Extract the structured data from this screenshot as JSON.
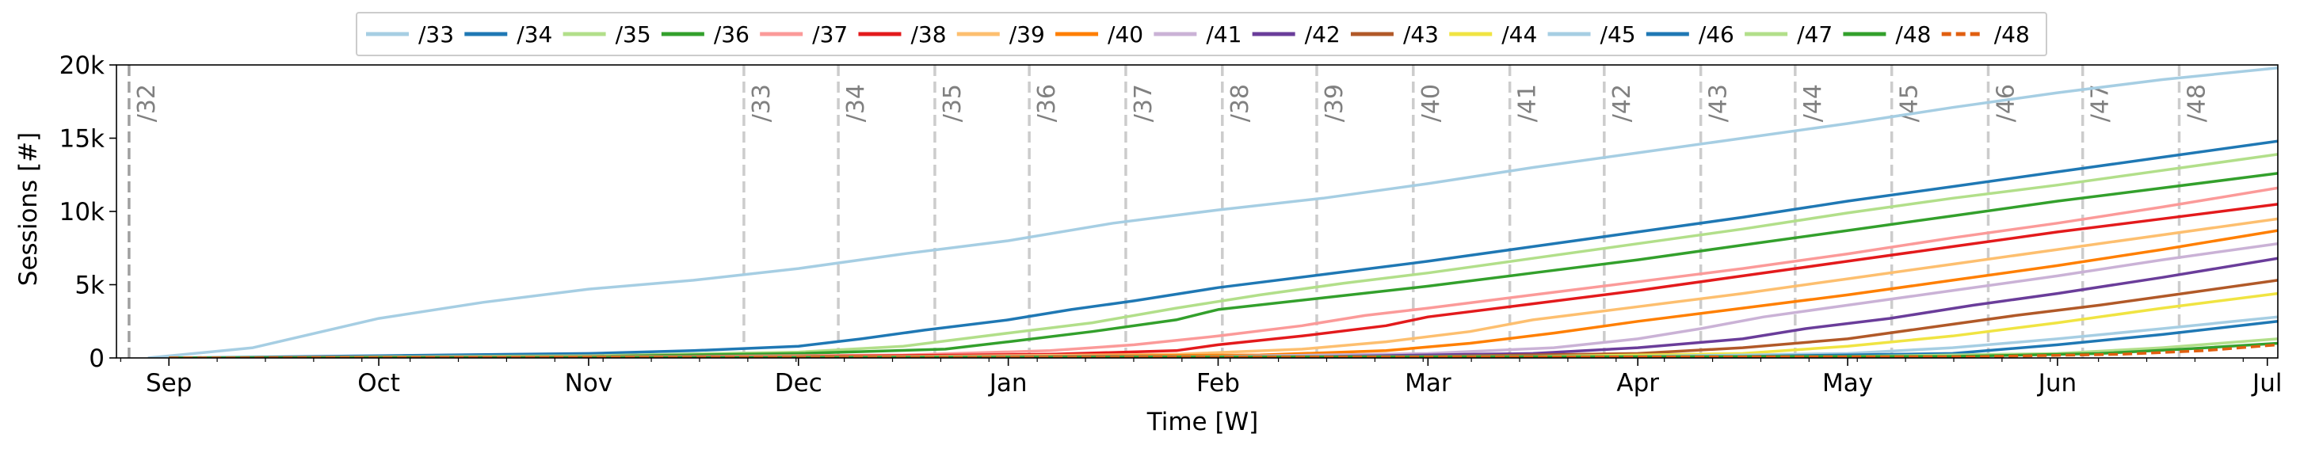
{
  "chart_data": {
    "type": "line",
    "title": "",
    "xlabel": "Time [W]",
    "ylabel": "Sessions [#]",
    "x_ticks": [
      "Sep",
      "Oct",
      "Nov",
      "Dec",
      "Jan",
      "Feb",
      "Mar",
      "Apr",
      "May",
      "Jun",
      "Jul"
    ],
    "y_ticks": [
      "0",
      "5k",
      "10k",
      "15k",
      "20k"
    ],
    "ylim": [
      0,
      20000
    ],
    "xlim_months": [
      -0.25,
      10.05
    ],
    "grid": false,
    "legend_position": "top-center",
    "markers": [
      {
        "label": "/32",
        "t": -0.19
      },
      {
        "label": "/33",
        "t": 2.74
      },
      {
        "label": "/34",
        "t": 3.19
      },
      {
        "label": "/35",
        "t": 3.65
      },
      {
        "label": "/36",
        "t": 4.1
      },
      {
        "label": "/37",
        "t": 4.56
      },
      {
        "label": "/38",
        "t": 5.02
      },
      {
        "label": "/39",
        "t": 5.47
      },
      {
        "label": "/40",
        "t": 5.93
      },
      {
        "label": "/41",
        "t": 6.39
      },
      {
        "label": "/42",
        "t": 6.84
      },
      {
        "label": "/43",
        "t": 7.3
      },
      {
        "label": "/44",
        "t": 7.75
      },
      {
        "label": "/45",
        "t": 8.21
      },
      {
        "label": "/46",
        "t": 8.67
      },
      {
        "label": "/47",
        "t": 9.12
      },
      {
        "label": "/48",
        "t": 9.58
      }
    ],
    "series": [
      {
        "name": "/33",
        "color": "#a6cee3",
        "dash": false,
        "points": [
          [
            -0.1,
            0
          ],
          [
            0.4,
            700
          ],
          [
            1,
            2700
          ],
          [
            1.5,
            3800
          ],
          [
            2,
            4700
          ],
          [
            2.5,
            5300
          ],
          [
            3,
            6100
          ],
          [
            3.5,
            7100
          ],
          [
            4,
            8000
          ],
          [
            4.5,
            9200
          ],
          [
            5,
            10100
          ],
          [
            5.5,
            10900
          ],
          [
            6,
            11900
          ],
          [
            6.5,
            13000
          ],
          [
            7,
            14000
          ],
          [
            7.5,
            15000
          ],
          [
            8,
            16000
          ],
          [
            8.5,
            17100
          ],
          [
            9,
            18100
          ],
          [
            9.5,
            19000
          ],
          [
            10.05,
            19800
          ]
        ]
      },
      {
        "name": "/34",
        "color": "#1f78b4",
        "dash": false,
        "points": [
          [
            0,
            0
          ],
          [
            1,
            150
          ],
          [
            2,
            300
          ],
          [
            2.5,
            500
          ],
          [
            3,
            800
          ],
          [
            3.3,
            1300
          ],
          [
            3.6,
            1900
          ],
          [
            4,
            2600
          ],
          [
            4.3,
            3300
          ],
          [
            4.6,
            3900
          ],
          [
            5,
            4800
          ],
          [
            5.5,
            5700
          ],
          [
            6,
            6600
          ],
          [
            6.5,
            7600
          ],
          [
            7,
            8600
          ],
          [
            7.5,
            9600
          ],
          [
            8,
            10700
          ],
          [
            8.5,
            11700
          ],
          [
            9,
            12700
          ],
          [
            9.5,
            13700
          ],
          [
            10.05,
            14800
          ]
        ]
      },
      {
        "name": "/35",
        "color": "#b2df8a",
        "dash": false,
        "points": [
          [
            0,
            0
          ],
          [
            2,
            150
          ],
          [
            3,
            400
          ],
          [
            3.5,
            800
          ],
          [
            4,
            1700
          ],
          [
            4.4,
            2400
          ],
          [
            4.8,
            3400
          ],
          [
            5.2,
            4300
          ],
          [
            5.6,
            5100
          ],
          [
            6,
            5800
          ],
          [
            6.5,
            6800
          ],
          [
            7,
            7800
          ],
          [
            7.5,
            8800
          ],
          [
            8,
            9900
          ],
          [
            8.5,
            10900
          ],
          [
            9,
            11800
          ],
          [
            9.5,
            12800
          ],
          [
            10.05,
            13900
          ]
        ]
      },
      {
        "name": "/36",
        "color": "#33a02c",
        "dash": false,
        "points": [
          [
            0,
            0
          ],
          [
            2,
            100
          ],
          [
            3,
            300
          ],
          [
            3.7,
            600
          ],
          [
            4,
            1100
          ],
          [
            4.4,
            1800
          ],
          [
            4.8,
            2600
          ],
          [
            5,
            3300
          ],
          [
            5.5,
            4100
          ],
          [
            6,
            4900
          ],
          [
            6.5,
            5800
          ],
          [
            7,
            6700
          ],
          [
            7.5,
            7700
          ],
          [
            8,
            8700
          ],
          [
            8.5,
            9700
          ],
          [
            9,
            10700
          ],
          [
            9.5,
            11600
          ],
          [
            10.05,
            12600
          ]
        ]
      },
      {
        "name": "/37",
        "color": "#fb9a99",
        "dash": false,
        "points": [
          [
            0,
            0
          ],
          [
            2.5,
            100
          ],
          [
            3.5,
            200
          ],
          [
            4.2,
            500
          ],
          [
            4.6,
            900
          ],
          [
            5,
            1500
          ],
          [
            5.4,
            2200
          ],
          [
            5.7,
            2900
          ],
          [
            6,
            3400
          ],
          [
            6.5,
            4300
          ],
          [
            7,
            5200
          ],
          [
            7.5,
            6100
          ],
          [
            8,
            7100
          ],
          [
            8.5,
            8200
          ],
          [
            9,
            9200
          ],
          [
            9.5,
            10300
          ],
          [
            10.05,
            11600
          ]
        ]
      },
      {
        "name": "/38",
        "color": "#e31a1c",
        "dash": false,
        "points": [
          [
            0,
            0
          ],
          [
            3,
            100
          ],
          [
            4.2,
            250
          ],
          [
            4.8,
            500
          ],
          [
            5,
            900
          ],
          [
            5.4,
            1500
          ],
          [
            5.8,
            2200
          ],
          [
            6,
            2800
          ],
          [
            6.5,
            3700
          ],
          [
            7,
            4600
          ],
          [
            7.5,
            5600
          ],
          [
            8,
            6600
          ],
          [
            8.5,
            7600
          ],
          [
            9,
            8600
          ],
          [
            9.5,
            9500
          ],
          [
            10.05,
            10500
          ]
        ]
      },
      {
        "name": "/39",
        "color": "#fdbf6f",
        "dash": false,
        "points": [
          [
            0,
            0
          ],
          [
            3.5,
            100
          ],
          [
            4.8,
            250
          ],
          [
            5.4,
            600
          ],
          [
            5.8,
            1100
          ],
          [
            6.2,
            1800
          ],
          [
            6.5,
            2600
          ],
          [
            7,
            3500
          ],
          [
            7.5,
            4400
          ],
          [
            8,
            5400
          ],
          [
            8.5,
            6400
          ],
          [
            9,
            7400
          ],
          [
            9.5,
            8400
          ],
          [
            10.05,
            9500
          ]
        ]
      },
      {
        "name": "/40",
        "color": "#ff7f00",
        "dash": false,
        "points": [
          [
            0,
            0
          ],
          [
            4,
            100
          ],
          [
            5.2,
            200
          ],
          [
            5.8,
            500
          ],
          [
            6.2,
            1000
          ],
          [
            6.6,
            1700
          ],
          [
            7,
            2500
          ],
          [
            7.5,
            3400
          ],
          [
            8,
            4300
          ],
          [
            8.5,
            5300
          ],
          [
            9,
            6300
          ],
          [
            9.5,
            7400
          ],
          [
            10.05,
            8700
          ]
        ]
      },
      {
        "name": "/41",
        "color": "#cab2d6",
        "dash": false,
        "points": [
          [
            0,
            0
          ],
          [
            5,
            100
          ],
          [
            6,
            300
          ],
          [
            6.6,
            700
          ],
          [
            7,
            1300
          ],
          [
            7.3,
            2000
          ],
          [
            7.6,
            2800
          ],
          [
            8,
            3600
          ],
          [
            8.5,
            4600
          ],
          [
            9,
            5600
          ],
          [
            9.5,
            6700
          ],
          [
            10.05,
            7800
          ]
        ]
      },
      {
        "name": "/42",
        "color": "#6a3d9a",
        "dash": false,
        "points": [
          [
            0,
            0
          ],
          [
            5.5,
            100
          ],
          [
            6.5,
            300
          ],
          [
            7,
            700
          ],
          [
            7.5,
            1300
          ],
          [
            7.8,
            2000
          ],
          [
            8.2,
            2700
          ],
          [
            8.6,
            3600
          ],
          [
            9,
            4400
          ],
          [
            9.5,
            5500
          ],
          [
            10.05,
            6800
          ]
        ]
      },
      {
        "name": "/43",
        "color": "#b15928",
        "dash": false,
        "points": [
          [
            0,
            0
          ],
          [
            6,
            100
          ],
          [
            7,
            300
          ],
          [
            7.5,
            700
          ],
          [
            8,
            1300
          ],
          [
            8.4,
            2100
          ],
          [
            8.8,
            2900
          ],
          [
            9.2,
            3600
          ],
          [
            9.6,
            4400
          ],
          [
            10.05,
            5300
          ]
        ]
      },
      {
        "name": "/44",
        "color": "#f0e442",
        "dash": false,
        "points": [
          [
            0,
            0
          ],
          [
            6.5,
            100
          ],
          [
            7.5,
            300
          ],
          [
            8,
            800
          ],
          [
            8.5,
            1500
          ],
          [
            9,
            2400
          ],
          [
            9.5,
            3400
          ],
          [
            10.05,
            4400
          ]
        ]
      },
      {
        "name": "/45",
        "color": "#a6cee3",
        "dash": false,
        "points": [
          [
            0,
            0
          ],
          [
            7,
            100
          ],
          [
            8,
            300
          ],
          [
            8.5,
            700
          ],
          [
            9,
            1300
          ],
          [
            9.5,
            2000
          ],
          [
            10.05,
            2800
          ]
        ]
      },
      {
        "name": "/46",
        "color": "#1f78b4",
        "dash": false,
        "points": [
          [
            0,
            0
          ],
          [
            7.5,
            100
          ],
          [
            8.5,
            300
          ],
          [
            9,
            900
          ],
          [
            9.5,
            1600
          ],
          [
            10.05,
            2500
          ]
        ]
      },
      {
        "name": "/47",
        "color": "#b2df8a",
        "dash": false,
        "points": [
          [
            0,
            0
          ],
          [
            8,
            100
          ],
          [
            9,
            300
          ],
          [
            9.5,
            700
          ],
          [
            10.05,
            1300
          ]
        ]
      },
      {
        "name": "/48",
        "color": "#33a02c",
        "dash": false,
        "points": [
          [
            0,
            0
          ],
          [
            8.5,
            100
          ],
          [
            9.2,
            300
          ],
          [
            9.6,
            600
          ],
          [
            10.05,
            1000
          ]
        ]
      },
      {
        "name": "/48",
        "color": "#e15f10",
        "dash": true,
        "points": [
          [
            0,
            0
          ],
          [
            8.6,
            80
          ],
          [
            9.3,
            250
          ],
          [
            9.7,
            500
          ],
          [
            10.05,
            900
          ]
        ]
      }
    ]
  }
}
